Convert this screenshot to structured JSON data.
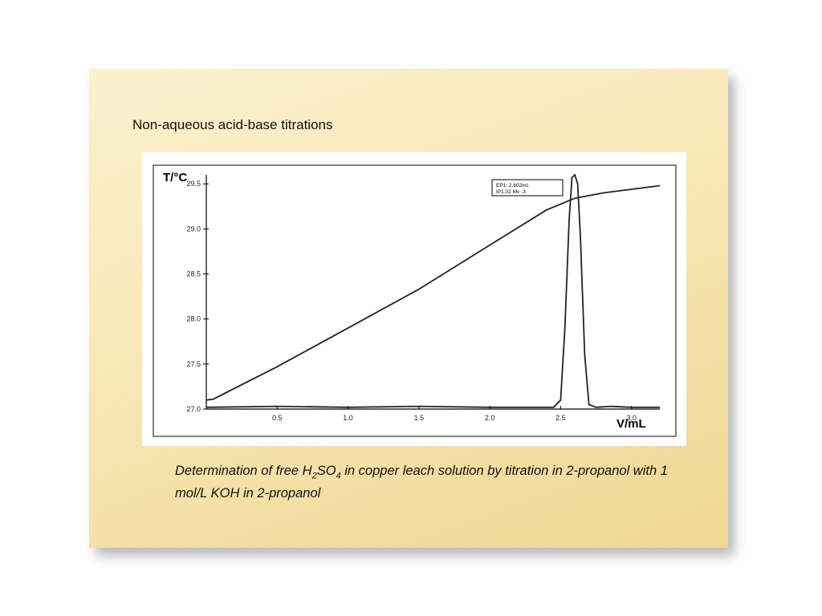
{
  "slide": {
    "title": "Non-aqueous acid-base titrations",
    "caption": {
      "part1": "Determination of free H",
      "sub1": "2",
      "part2": "SO",
      "sub2": "4",
      "part3": " in copper leach solution by titration in 2-propanol with 1 mol/L KOH in 2-propanol"
    }
  },
  "chart_data": {
    "type": "line",
    "ylabel": "T/°C",
    "xlabel": "V/mL",
    "xlim": [
      0,
      3.2
    ],
    "ylim": [
      27.0,
      29.6
    ],
    "x_ticks": [
      "0.5",
      "1.0",
      "1.5",
      "2.0",
      "2.5",
      "3.0"
    ],
    "y_ticks": [
      "27.0",
      "27.5",
      "28.0",
      "28.5",
      "29.0",
      "29.5"
    ],
    "annotation": [
      "EP1: 2.602mL",
      "IP1.02 Mv -3"
    ],
    "series": [
      {
        "x": [
          0.0,
          0.05,
          0.5,
          1.0,
          1.5,
          2.0,
          2.4,
          2.6,
          2.8,
          3.0,
          3.2
        ],
        "y": [
          27.1,
          27.11,
          27.47,
          27.9,
          28.33,
          28.82,
          29.21,
          29.34,
          29.4,
          29.44,
          29.48
        ]
      },
      {
        "x": [
          0.0,
          0.5,
          1.0,
          1.5,
          2.0,
          2.45,
          2.5,
          2.53,
          2.56,
          2.58,
          2.6,
          2.62,
          2.64,
          2.67,
          2.7,
          2.75,
          2.85,
          3.0,
          3.2
        ],
        "y": [
          27.02,
          27.03,
          27.02,
          27.03,
          27.02,
          27.02,
          27.1,
          27.9,
          29.1,
          29.57,
          29.6,
          29.5,
          28.9,
          27.6,
          27.05,
          27.02,
          27.03,
          27.02,
          27.02
        ]
      }
    ],
    "grid": false,
    "legend": "none"
  }
}
